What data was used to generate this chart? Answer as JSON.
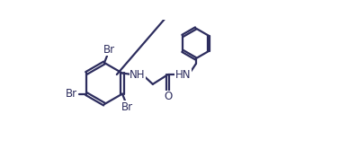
{
  "bg_color": "#ffffff",
  "line_color": "#2d2d5e",
  "line_width": 1.6,
  "font_size": 8.5,
  "figsize": [
    3.78,
    1.85
  ],
  "dpi": 100,
  "xlim": [
    0.0,
    3.78
  ],
  "ylim": [
    0.0,
    1.85
  ]
}
